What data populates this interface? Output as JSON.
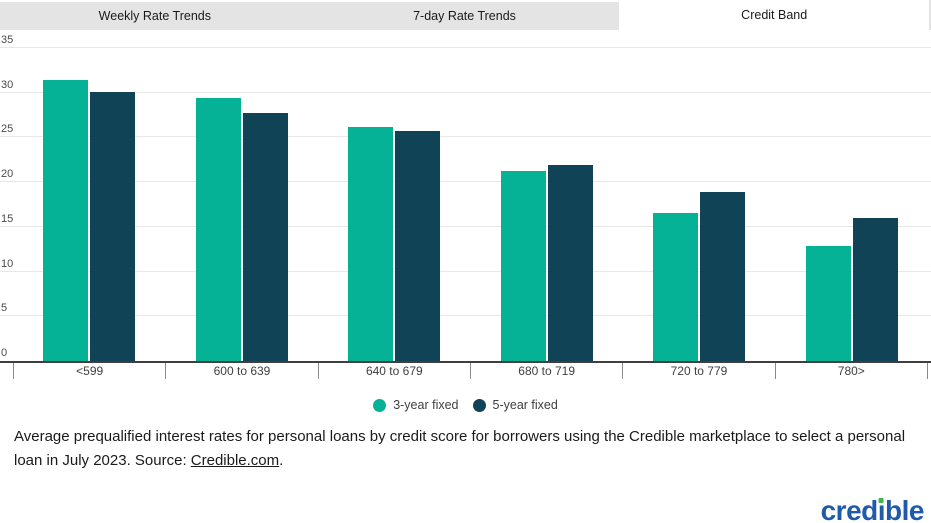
{
  "tabs": [
    {
      "label": "Weekly Rate Trends",
      "active": false
    },
    {
      "label": "7-day Rate Trends",
      "active": false
    },
    {
      "label": "Credit Band",
      "active": true
    }
  ],
  "chart_data": {
    "type": "bar",
    "title": "",
    "xlabel": "",
    "ylabel": "",
    "categories": [
      "<599",
      "600 to 639",
      "640 to 679",
      "680 to 719",
      "720 to 779",
      "780>"
    ],
    "series": [
      {
        "name": "3-year fixed",
        "color": "#05B296",
        "values": [
          31.4,
          29.4,
          26.2,
          21.2,
          16.5,
          12.9
        ]
      },
      {
        "name": "5-year fixed",
        "color": "#0F4355",
        "values": [
          30.1,
          27.7,
          25.7,
          21.9,
          18.9,
          16.0
        ]
      }
    ],
    "ylim": [
      0,
      35
    ],
    "yticks": [
      0,
      5,
      10,
      15,
      20,
      25,
      30,
      35
    ],
    "grid": true,
    "legend_position": "bottom"
  },
  "caption": {
    "text": "Average prequalified interest rates for personal loans by credit score for borrowers using the Credible marketplace to select a personal loan in July 2023. Source: ",
    "link_text": "Credible.com",
    "suffix": "."
  },
  "logo": {
    "pre": "cred",
    "dotless_i": "ı",
    "post": "ble",
    "blue": "#1F5BA9",
    "green": "#3CB54A"
  }
}
